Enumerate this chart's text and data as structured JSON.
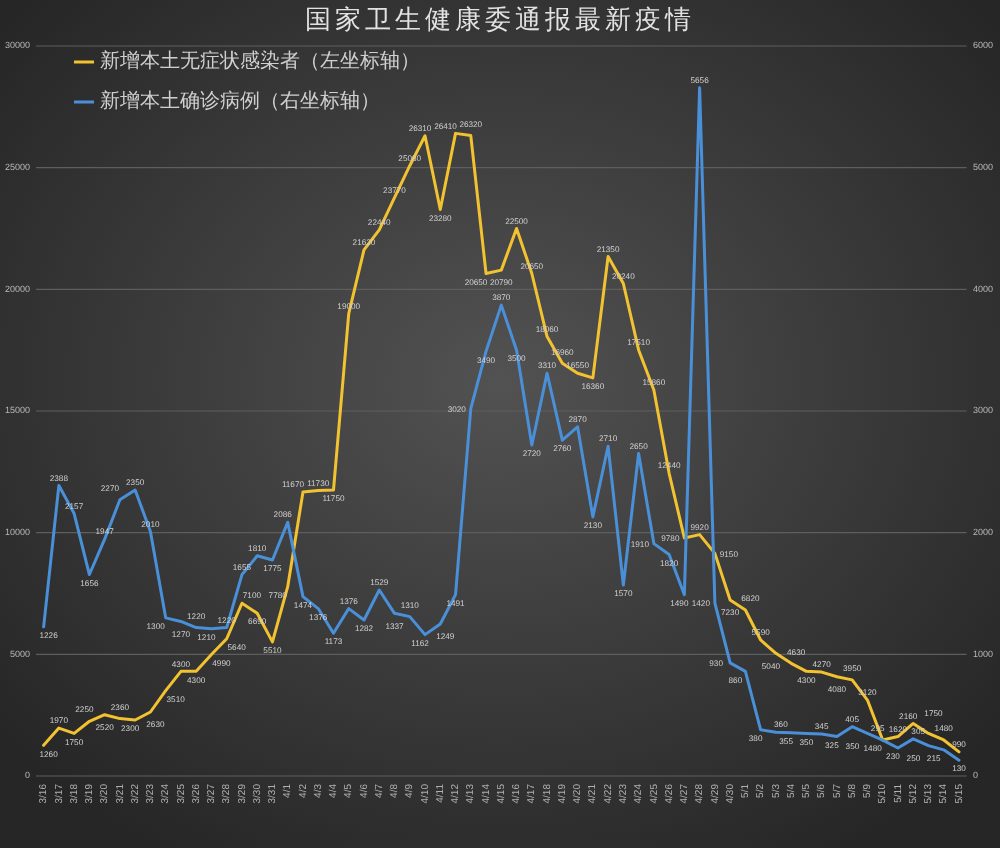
{
  "chart_data": {
    "type": "line",
    "title": "国家卫生健康委通报最新疫情",
    "categories": [
      "3/16",
      "3/17",
      "3/18",
      "3/19",
      "3/20",
      "3/21",
      "3/22",
      "3/23",
      "3/24",
      "3/25",
      "3/26",
      "3/27",
      "3/28",
      "3/29",
      "3/30",
      "3/31",
      "4/1",
      "4/2",
      "4/3",
      "4/4",
      "4/5",
      "4/6",
      "4/7",
      "4/8",
      "4/9",
      "4/10",
      "4/11",
      "4/12",
      "4/13",
      "4/14",
      "4/15",
      "4/16",
      "4/17",
      "4/18",
      "4/19",
      "4/20",
      "4/21",
      "4/22",
      "4/23",
      "4/24",
      "4/25",
      "4/26",
      "4/27",
      "4/28",
      "4/29",
      "4/30",
      "5/1",
      "5/2",
      "5/3",
      "5/4",
      "5/5",
      "5/6",
      "5/7",
      "5/8",
      "5/9",
      "5/10",
      "5/11",
      "5/12",
      "5/13",
      "5/14",
      "5/15"
    ],
    "series": [
      {
        "name": "新增本土无症状感染者（左坐标轴）",
        "color": "#f2c230",
        "values": [
          1260,
          1970,
          1750,
          2250,
          2520,
          2360,
          2300,
          2630,
          3510,
          4300,
          4300,
          4990,
          5640,
          7100,
          6690,
          5510,
          7780,
          11670,
          11730,
          11750,
          19000,
          21620,
          22440,
          23770,
          25080,
          26310,
          23280,
          26410,
          26320,
          20650,
          20790,
          22500,
          20650,
          18060,
          16960,
          16550,
          16360,
          21350,
          20240,
          17510,
          15860,
          12440,
          9780,
          9920,
          9150,
          7230,
          6820,
          5590,
          5040,
          4630,
          4300,
          4270,
          4080,
          3950,
          3120,
          1480,
          1620,
          2160,
          1750,
          1480,
          990
        ]
      },
      {
        "name": "新增本土确诊病例（右坐标轴）",
        "color": "#4a90d9",
        "axis": "y2",
        "values": [
          1226,
          2388,
          2157,
          1656,
          1947,
          2270,
          2350,
          2010,
          1300,
          1270,
          1220,
          1210,
          1220,
          1655,
          1810,
          1775,
          2086,
          1474,
          1376,
          1173,
          1376,
          1282,
          1529,
          1337,
          1310,
          1162,
          1249,
          1491,
          3020,
          3490,
          3870,
          3500,
          2720,
          3310,
          2760,
          2870,
          2130,
          2710,
          1570,
          2650,
          1910,
          1820,
          1490,
          5656,
          1420,
          930,
          860,
          380,
          360,
          355,
          350,
          345,
          325,
          405,
          350,
          295,
          230,
          305,
          250,
          215,
          130
        ]
      }
    ],
    "ylim": [
      0,
      30000
    ],
    "yticks": [
      0,
      5000,
      10000,
      15000,
      20000,
      25000,
      30000
    ],
    "y2lim": [
      0,
      6000
    ],
    "y2ticks": [
      0,
      1000,
      2000,
      3000,
      4000,
      5000,
      6000
    ],
    "grid": "y",
    "legend": "top left",
    "data_labels": true
  }
}
